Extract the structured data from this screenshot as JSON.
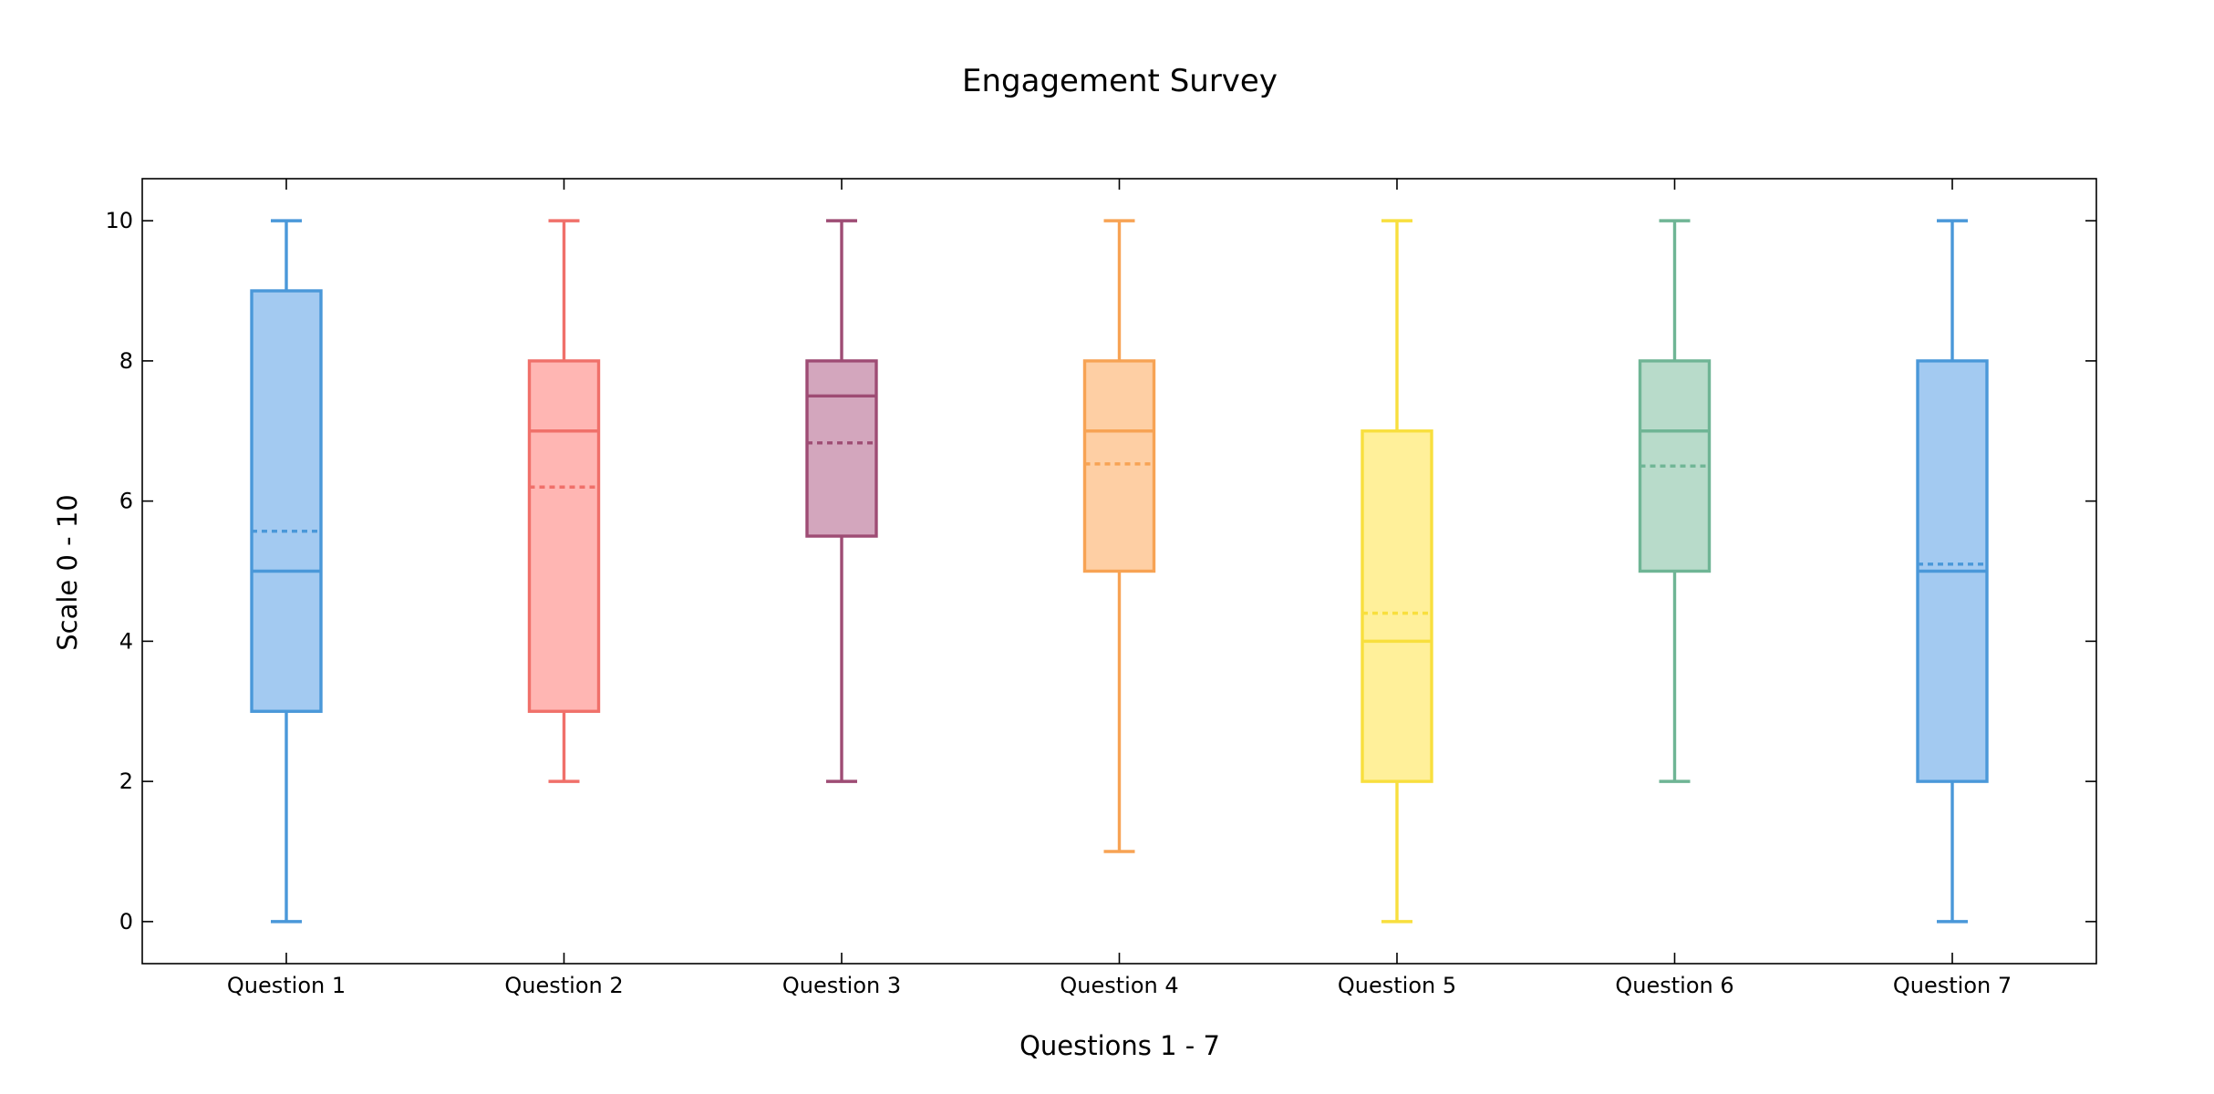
{
  "chart_data": {
    "type": "box",
    "title": "Engagement Survey",
    "xlabel": "Questions 1 - 7",
    "ylabel": "Scale 0  - 10",
    "ylim": [
      -0.6,
      10.6
    ],
    "yticks": [
      0,
      2,
      4,
      6,
      8,
      10
    ],
    "grid": false,
    "legend": "none",
    "categories": [
      "Question 1",
      "Question 2",
      "Question 3",
      "Question 4",
      "Question 5",
      "Question 6",
      "Question 7"
    ],
    "boxes": [
      {
        "category": "Question 1",
        "min": 0,
        "q1": 3,
        "median": 5,
        "mean": 5.57,
        "q3": 9,
        "max": 10,
        "stroke": "#4a98d9",
        "fill": "#a3caf1"
      },
      {
        "category": "Question 2",
        "min": 2,
        "q1": 3,
        "median": 7,
        "mean": 6.2,
        "q3": 8,
        "max": 10,
        "stroke": "#f0706a",
        "fill": "#ffb6b3"
      },
      {
        "category": "Question 3",
        "min": 2,
        "q1": 5.5,
        "median": 7.5,
        "mean": 6.83,
        "q3": 8,
        "max": 10,
        "stroke": "#9e4c74",
        "fill": "#d3a6bd"
      },
      {
        "category": "Question 4",
        "min": 1,
        "q1": 5,
        "median": 7,
        "mean": 6.53,
        "q3": 8,
        "max": 10,
        "stroke": "#f7a354",
        "fill": "#fecfa4"
      },
      {
        "category": "Question 5",
        "min": 0,
        "q1": 2,
        "median": 4,
        "mean": 4.4,
        "q3": 7,
        "max": 10,
        "stroke": "#f8df3e",
        "fill": "#fff09a"
      },
      {
        "category": "Question 6",
        "min": 2,
        "q1": 5,
        "median": 7,
        "mean": 6.5,
        "q3": 8,
        "max": 10,
        "stroke": "#6fb595",
        "fill": "#b8dbca"
      },
      {
        "category": "Question 7",
        "min": 0,
        "q1": 2,
        "median": 5,
        "mean": 5.1,
        "q3": 8,
        "max": 10,
        "stroke": "#4a98d9",
        "fill": "#a3caf1"
      }
    ]
  }
}
